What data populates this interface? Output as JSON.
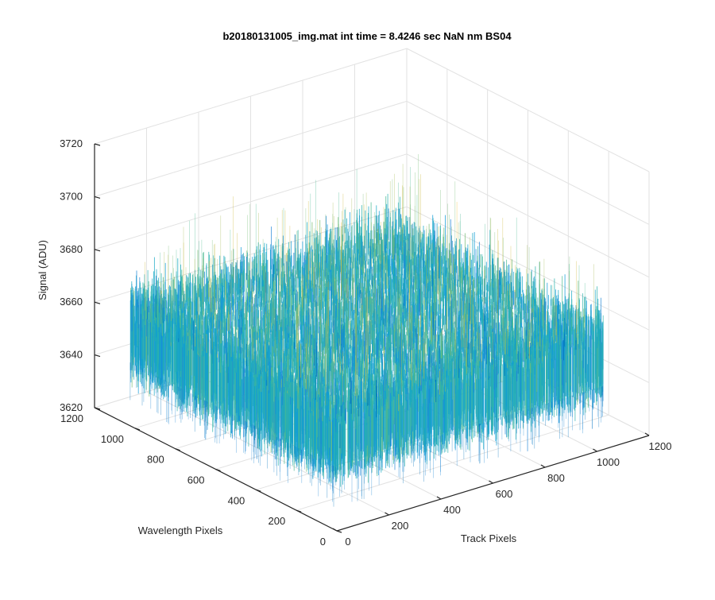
{
  "chart_data": {
    "type": "surface",
    "title": "b20180131005_img.mat int time = 8.4246 sec  NaN nm BS04",
    "xlabel": "Track Pixels",
    "ylabel": "Wavelength Pixels",
    "zlabel": "Signal (ADU)",
    "xlim": [
      0,
      1200
    ],
    "ylim": [
      0,
      1200
    ],
    "zlim": [
      3620,
      3720
    ],
    "x_ticks": [
      0,
      200,
      400,
      600,
      800,
      1000,
      1200
    ],
    "y_ticks": [
      0,
      200,
      400,
      600,
      800,
      1000,
      1200
    ],
    "z_ticks": [
      3620,
      3640,
      3660,
      3680,
      3700,
      3720
    ],
    "data_extent": {
      "x": [
        0,
        1024
      ],
      "y": [
        0,
        1024
      ]
    },
    "signal_mean": 3658,
    "signal_range": [
      3630,
      3705
    ],
    "colormap": "parula",
    "grid": true,
    "box": false
  }
}
